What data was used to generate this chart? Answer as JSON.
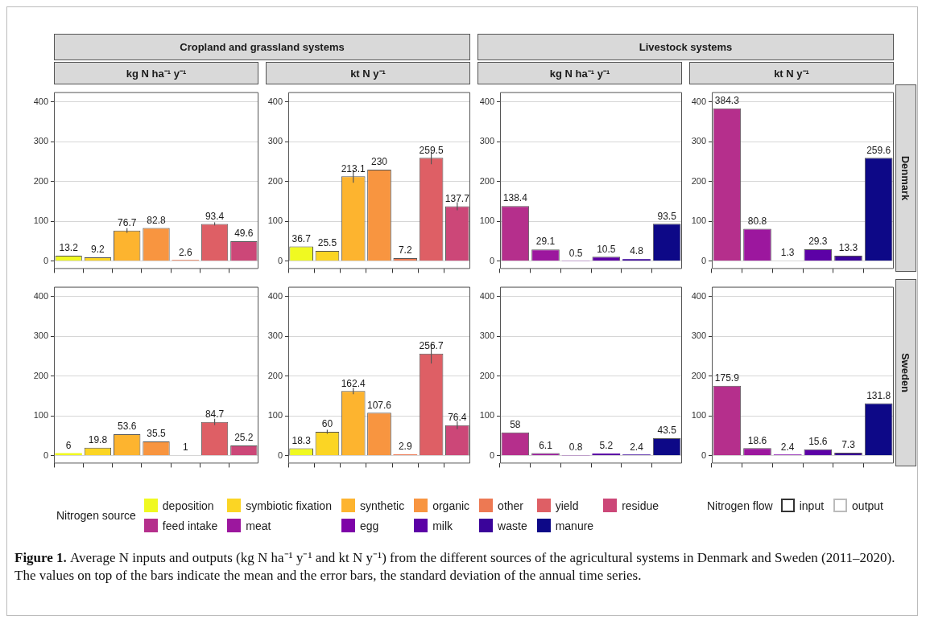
{
  "chart_data": [
    {
      "type": "bar",
      "title": "kg N ha⁻¹ y⁻¹",
      "subtitle": "Cropland and grassland systems",
      "categories": [
        null,
        null,
        null,
        null,
        null,
        null,
        null
      ],
      "ylim": [
        -20,
        425
      ],
      "yticks": [
        0,
        100,
        200,
        300,
        400
      ],
      "grid": "y",
      "tick_labels": "y",
      "data_labels": true,
      "colors": [
        "#f0f921",
        "#fbd524",
        "#fdb42f",
        "#f89540",
        "#ed7953",
        "#de5f65",
        "#cc4778"
      ],
      "values": [
        13.2,
        9.2,
        76.7,
        82.8,
        2.6,
        93.4,
        49.6
      ],
      "errors": [
        null,
        null,
        6,
        null,
        null,
        4,
        null
      ]
    },
    {
      "type": "bar",
      "title": "kt N y⁻¹",
      "categories": [
        null,
        null,
        null,
        null,
        null,
        null,
        null
      ],
      "ylim": [
        -20,
        425
      ],
      "yticks": [
        0,
        100,
        200,
        300,
        400
      ],
      "grid": "y",
      "tick_labels": "y",
      "data_labels": true,
      "colors": [
        "#f0f921",
        "#fbd524",
        "#fdb42f",
        "#f89540",
        "#ed7953",
        "#de5f65",
        "#cc4778"
      ],
      "values": [
        36.7,
        25.5,
        213.1,
        230,
        7.2,
        259.5,
        137.7
      ],
      "errors": [
        null,
        null,
        16,
        null,
        null,
        16,
        10
      ]
    },
    {
      "type": "bar",
      "title": "kg N ha⁻¹ y⁻¹",
      "subtitle": "Livestock systems",
      "categories": [
        null,
        null,
        null,
        null,
        null,
        null
      ],
      "ylim": [
        -20,
        425
      ],
      "yticks": [
        0,
        100,
        200,
        300,
        400
      ],
      "grid": "y",
      "tick_labels": "y",
      "data_labels": true,
      "colors": [
        "#b52f8c",
        "#9c179e",
        "#7e03a8",
        "#5c01a6",
        "#3a049a",
        "#0d0887"
      ],
      "values": [
        138.4,
        29.1,
        0.5,
        10.5,
        4.8,
        93.5
      ]
    },
    {
      "type": "bar",
      "title": "kt N y⁻¹",
      "categories": [
        null,
        null,
        null,
        null,
        null,
        null
      ],
      "ylim": [
        -20,
        425
      ],
      "yticks": [
        0,
        100,
        200,
        300,
        400
      ],
      "grid": "y",
      "tick_labels": "y",
      "data_labels": true,
      "annotations": [
        "Denmark"
      ],
      "colors": [
        "#b52f8c",
        "#9c179e",
        "#7e03a8",
        "#5c01a6",
        "#3a049a",
        "#0d0887"
      ],
      "values": [
        384.3,
        80.8,
        1.3,
        29.3,
        13.3,
        259.6
      ]
    },
    {
      "type": "bar",
      "categories": [
        null,
        null,
        null,
        null,
        null,
        null,
        null
      ],
      "ylim": [
        -20,
        425
      ],
      "yticks": [
        0,
        100,
        200,
        300,
        400
      ],
      "grid": "y",
      "tick_labels": "y",
      "data_labels": true,
      "colors": [
        "#f0f921",
        "#fbd524",
        "#fdb42f",
        "#f89540",
        "#ed7953",
        "#de5f65",
        "#cc4778"
      ],
      "values": [
        6,
        19.8,
        53.6,
        35.5,
        1,
        84.7,
        25.2
      ],
      "errors": [
        null,
        null,
        null,
        null,
        null,
        8,
        null
      ]
    },
    {
      "type": "bar",
      "categories": [
        null,
        null,
        null,
        null,
        null,
        null,
        null
      ],
      "ylim": [
        -20,
        425
      ],
      "yticks": [
        0,
        100,
        200,
        300,
        400
      ],
      "grid": "y",
      "tick_labels": "y",
      "data_labels": true,
      "colors": [
        "#f0f921",
        "#fbd524",
        "#fdb42f",
        "#f89540",
        "#ed7953",
        "#de5f65",
        "#cc4778"
      ],
      "values": [
        18.3,
        60,
        162.4,
        107.6,
        2.9,
        256.7,
        76.4
      ],
      "errors": [
        null,
        5,
        8,
        null,
        null,
        25,
        10
      ]
    },
    {
      "type": "bar",
      "categories": [
        null,
        null,
        null,
        null,
        null,
        null
      ],
      "ylim": [
        -20,
        425
      ],
      "yticks": [
        0,
        100,
        200,
        300,
        400
      ],
      "grid": "y",
      "tick_labels": "y",
      "data_labels": true,
      "colors": [
        "#b52f8c",
        "#9c179e",
        "#7e03a8",
        "#5c01a6",
        "#3a049a",
        "#0d0887"
      ],
      "values": [
        58,
        6.1,
        0.8,
        5.2,
        2.4,
        43.5
      ]
    },
    {
      "type": "bar",
      "categories": [
        null,
        null,
        null,
        null,
        null,
        null
      ],
      "ylim": [
        -20,
        425
      ],
      "yticks": [
        0,
        100,
        200,
        300,
        400
      ],
      "grid": "y",
      "tick_labels": "y",
      "data_labels": true,
      "annotations": [
        "Sweden"
      ],
      "colors": [
        "#b52f8c",
        "#9c179e",
        "#7e03a8",
        "#5c01a6",
        "#3a049a",
        "#0d0887"
      ],
      "values": [
        175.9,
        18.6,
        2.4,
        15.6,
        7.3,
        131.8
      ]
    },
    {
      "type": "other",
      "legend_title": "Nitrogen source",
      "categories": [
        "deposition",
        "symbiotic fixation",
        "synthetic",
        "organic",
        "other",
        "yield",
        "residue",
        "feed intake",
        "meat",
        "egg",
        "milk",
        "waste",
        "manure"
      ],
      "colors": [
        "#f0f921",
        "#fbd524",
        "#fdb42f",
        "#f89540",
        "#ed7953",
        "#de5f65",
        "#cc4778",
        "#b52f8c",
        "#9c179e",
        "#7e03a8",
        "#5c01a6",
        "#3a049a",
        "#0d0887"
      ],
      "annotations": [
        "Figure 1.",
        "Average N inputs and outputs (kg N ha⁻¹ y⁻¹ and kt N y⁻¹) from the different sources of the agricultural systems in Denmark and Sweden (2011–2020). The values on top of the bars indicate the mean and the error bars, the standard deviation of the annual time series."
      ]
    },
    {
      "type": "other",
      "legend_title": "Nitrogen flow",
      "categories": [
        "input",
        "output"
      ],
      "colors": [
        "#333333",
        "#bbbbbb"
      ]
    }
  ]
}
